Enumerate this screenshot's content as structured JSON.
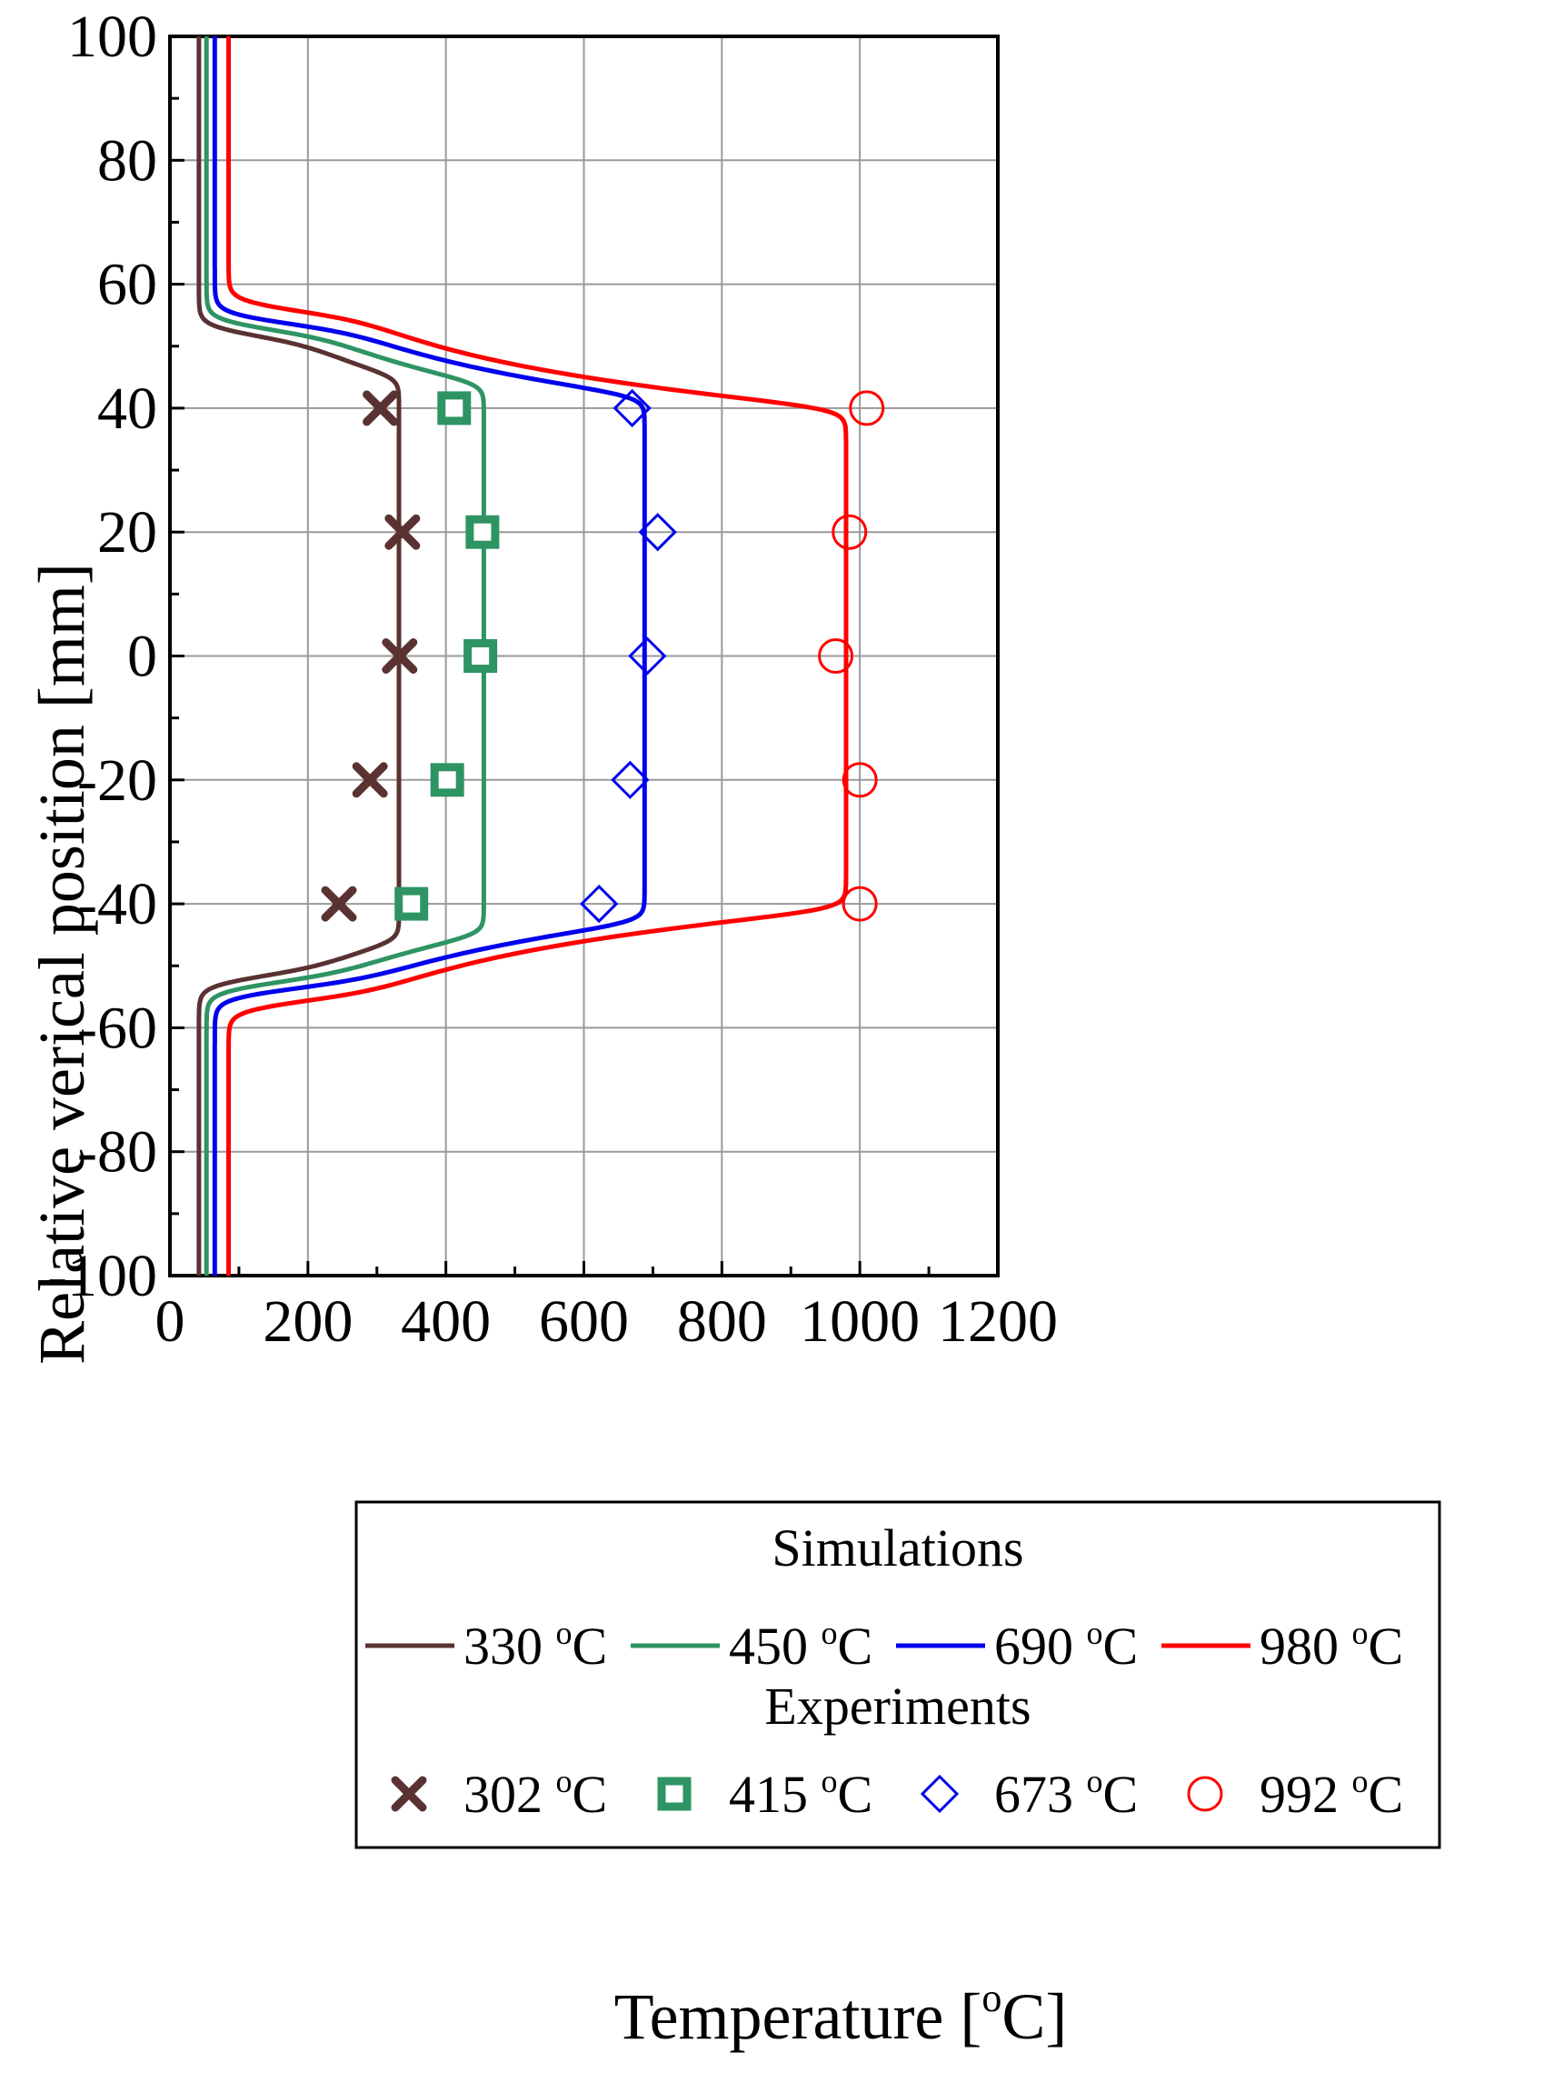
{
  "chart_data": {
    "type": "line",
    "title": "",
    "xlabel_main": "Temperature [",
    "xlabel_sup": "o",
    "xlabel_end": "C]",
    "ylabel": "Relative verical position [mm]",
    "xlim": [
      0,
      1200
    ],
    "ylim": [
      -100,
      100
    ],
    "x_ticks": [
      0,
      200,
      400,
      600,
      800,
      1000,
      1200
    ],
    "y_ticks": [
      -100,
      -80,
      -60,
      -40,
      -20,
      0,
      20,
      40,
      60,
      80,
      100
    ],
    "x_tick_labels": [
      "0",
      "200",
      "400",
      "600",
      "800",
      "1000",
      "1200"
    ],
    "y_tick_labels": [
      "-100",
      "-80",
      "-60",
      "-40",
      "-20",
      "0",
      "20",
      "40",
      "60",
      "80",
      "100"
    ],
    "grid": true,
    "legend": {
      "placement": "bottom-right",
      "simulations_title": "Simulations",
      "experiments_title": "Experiments",
      "deg_sup": "o",
      "deg_unit": "C"
    },
    "simulations": [
      {
        "name": "330",
        "color": "#5a3232",
        "base": 42,
        "plateau": 332,
        "shoulder_top": 45,
        "shoulder_bot": -46,
        "top_edge": 55,
        "bot_edge": -55
      },
      {
        "name": "450",
        "color": "#2e9463",
        "base": 53,
        "plateau": 455,
        "shoulder_top": 44,
        "shoulder_bot": -45,
        "top_edge": 56,
        "bot_edge": -56
      },
      {
        "name": "690",
        "color": "#0000ee",
        "base": 65,
        "plateau": 688,
        "shoulder_top": 42,
        "shoulder_bot": -43,
        "top_edge": 57,
        "bot_edge": -57
      },
      {
        "name": "980",
        "color": "#ff0000",
        "base": 85,
        "plateau": 980,
        "shoulder_top": 40,
        "shoulder_bot": -41,
        "top_edge": 59,
        "bot_edge": -59
      }
    ],
    "experiments": [
      {
        "name": "302",
        "color": "#5a3232",
        "marker": "x",
        "points": [
          [
            305,
            40
          ],
          [
            337,
            20
          ],
          [
            333,
            0
          ],
          [
            290,
            -20
          ],
          [
            245,
            -40
          ]
        ]
      },
      {
        "name": "415",
        "color": "#2e9463",
        "marker": "square",
        "points": [
          [
            412,
            40
          ],
          [
            453,
            20
          ],
          [
            450,
            0
          ],
          [
            402,
            -20
          ],
          [
            350,
            -40
          ]
        ]
      },
      {
        "name": "673",
        "color": "#0000ee",
        "marker": "diamond",
        "points": [
          [
            670,
            40
          ],
          [
            707,
            20
          ],
          [
            692,
            0
          ],
          [
            667,
            -20
          ],
          [
            622,
            -40
          ]
        ]
      },
      {
        "name": "992",
        "color": "#ff0000",
        "marker": "circle",
        "points": [
          [
            1010,
            40
          ],
          [
            985,
            20
          ],
          [
            965,
            0
          ],
          [
            1000,
            -20
          ],
          [
            1000,
            -40
          ]
        ]
      }
    ]
  }
}
